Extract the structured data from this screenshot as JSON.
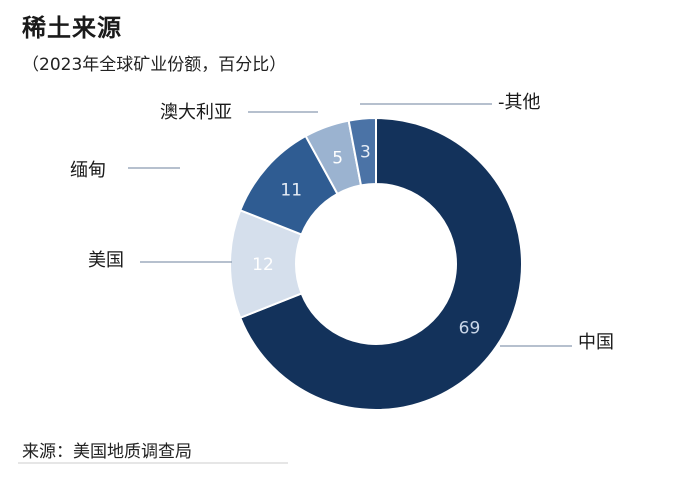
{
  "chart_data": {
    "type": "pie",
    "style": "donut",
    "title": "稀土来源",
    "subtitle": "（2023年全球矿业份额，百分比）",
    "source": "来源：美国地质调查局",
    "slices": [
      {
        "label": "中国",
        "value": 69,
        "color": "#13325b",
        "text_color": "#c9d6e8"
      },
      {
        "label": "美国",
        "value": 12,
        "color": "#d5dfec",
        "text_color": "#ffffff"
      },
      {
        "label": "缅甸",
        "value": 11,
        "color": "#2f5c92",
        "text_color": "#e8eef6"
      },
      {
        "label": "澳大利亚",
        "value": 5,
        "color": "#9bb3d0",
        "text_color": "#ffffff"
      },
      {
        "label": "-其他",
        "value": 3,
        "color": "#4b73a6",
        "text_color": "#e8eef6"
      }
    ]
  }
}
